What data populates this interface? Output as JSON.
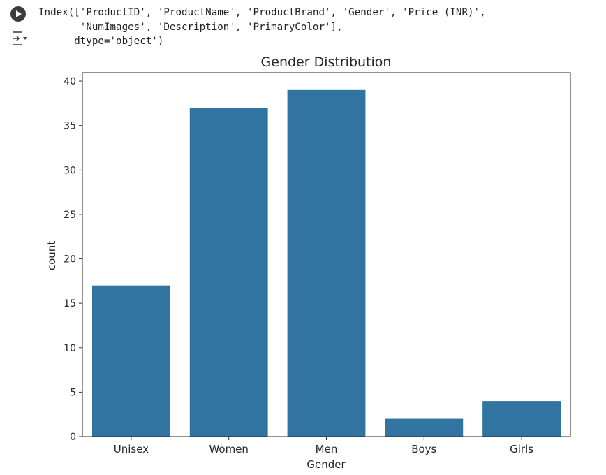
{
  "output": {
    "lines": [
      "Index(['ProductID', 'ProductName', 'ProductBrand', 'Gender', 'Price (INR)',",
      "       'NumImages', 'Description', 'PrimaryColor'],",
      "      dtype='object')"
    ]
  },
  "icons": {
    "run": "play-circle-icon",
    "output_toggle": "output-menu-icon"
  },
  "chart_data": {
    "type": "bar",
    "title": "Gender Distribution",
    "xlabel": "Gender",
    "ylabel": "count",
    "categories": [
      "Unisex",
      "Women",
      "Men",
      "Boys",
      "Girls"
    ],
    "values": [
      17,
      37,
      39,
      2,
      4
    ],
    "ylim": [
      0,
      40.95
    ],
    "yticks": [
      0,
      5,
      10,
      15,
      20,
      25,
      30,
      35,
      40
    ],
    "grid": false,
    "bar_color": "#3274a1"
  }
}
